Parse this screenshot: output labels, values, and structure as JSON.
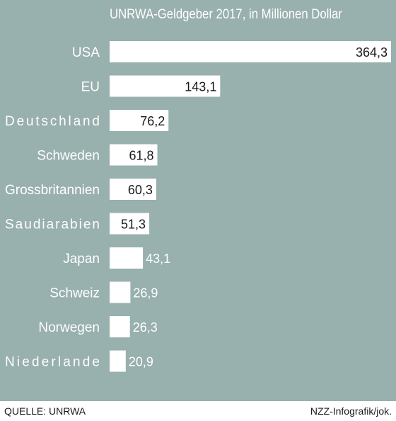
{
  "chart_data": {
    "type": "bar",
    "orientation": "horizontal",
    "title": "UNRWA-Geldgeber 2017, in Millionen Dollar",
    "categories": [
      "USA",
      "EU",
      "Deutschland",
      "Schweden",
      "Grossbritannien",
      "Saudiarabien",
      "Japan",
      "Schweiz",
      "Norwegen",
      "Niederlande"
    ],
    "values": [
      364.3,
      143.1,
      76.2,
      61.8,
      60.3,
      51.3,
      43.1,
      26.9,
      26.3,
      20.9
    ],
    "value_labels": [
      "364,3",
      "143,1",
      "76,2",
      "61,8",
      "60,3",
      "51,3",
      "43,1",
      "26,9",
      "26,3",
      "20,9"
    ],
    "xlim": [
      0,
      364.3
    ],
    "grid": false,
    "colors": {
      "background": "#98b0ae",
      "bar": "#ffffff"
    }
  },
  "footer": {
    "source": "QUELLE: UNRWA",
    "credit": "NZZ-Infografik/jok."
  }
}
